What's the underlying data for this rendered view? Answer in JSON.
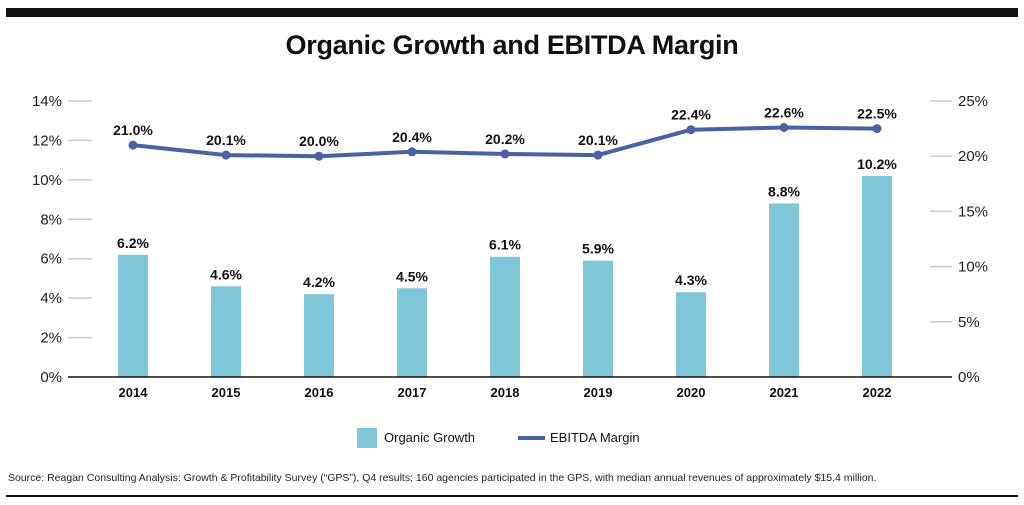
{
  "title": "Organic Growth and EBITDA Margin",
  "source": "Source: Reagan Consulting Analysis: Growth & Profitability Survey (“GPS”), Q4 results; 160 agencies participated in the GPS, with median annual revenues of approximately $15.4 million.",
  "colors": {
    "bar": "#7fc7d8",
    "line": "#4a62a3",
    "rule": "#111111",
    "grid": "#c8c8c8"
  },
  "chart_data": {
    "type": "bar",
    "categories": [
      "2014",
      "2015",
      "2016",
      "2017",
      "2018",
      "2019",
      "2020",
      "2021",
      "2022"
    ],
    "series": [
      {
        "name": "Organic Growth",
        "type": "bar",
        "axis": "left",
        "values": [
          6.2,
          4.6,
          4.2,
          4.5,
          6.1,
          5.9,
          4.3,
          8.8,
          10.2
        ],
        "labels": [
          "6.2%",
          "4.6%",
          "4.2%",
          "4.5%",
          "6.1%",
          "5.9%",
          "4.3%",
          "8.8%",
          "10.2%"
        ]
      },
      {
        "name": "EBITDA Margin",
        "type": "line",
        "axis": "right",
        "values": [
          21.0,
          20.1,
          20.0,
          20.4,
          20.2,
          20.1,
          22.4,
          22.6,
          22.5
        ],
        "labels": [
          "21.0%",
          "20.1%",
          "20.0%",
          "20.4%",
          "20.2%",
          "20.1%",
          "22.4%",
          "22.6%",
          "22.5%"
        ]
      }
    ],
    "y_left": {
      "ylim": [
        0,
        14
      ],
      "ticks": [
        0,
        2,
        4,
        6,
        8,
        10,
        12,
        14
      ],
      "tick_labels": [
        "0%",
        "2%",
        "4%",
        "6%",
        "8%",
        "10%",
        "12%",
        "14%"
      ]
    },
    "y_right": {
      "ylim": [
        0,
        25
      ],
      "ticks": [
        0,
        5,
        10,
        15,
        20,
        25
      ],
      "tick_labels": [
        "0%",
        "5%",
        "10%",
        "15%",
        "20%",
        "25%"
      ]
    },
    "legend": {
      "placement": "bottom-center",
      "entries": [
        "Organic Growth",
        "EBITDA Margin"
      ]
    },
    "grid": false
  }
}
